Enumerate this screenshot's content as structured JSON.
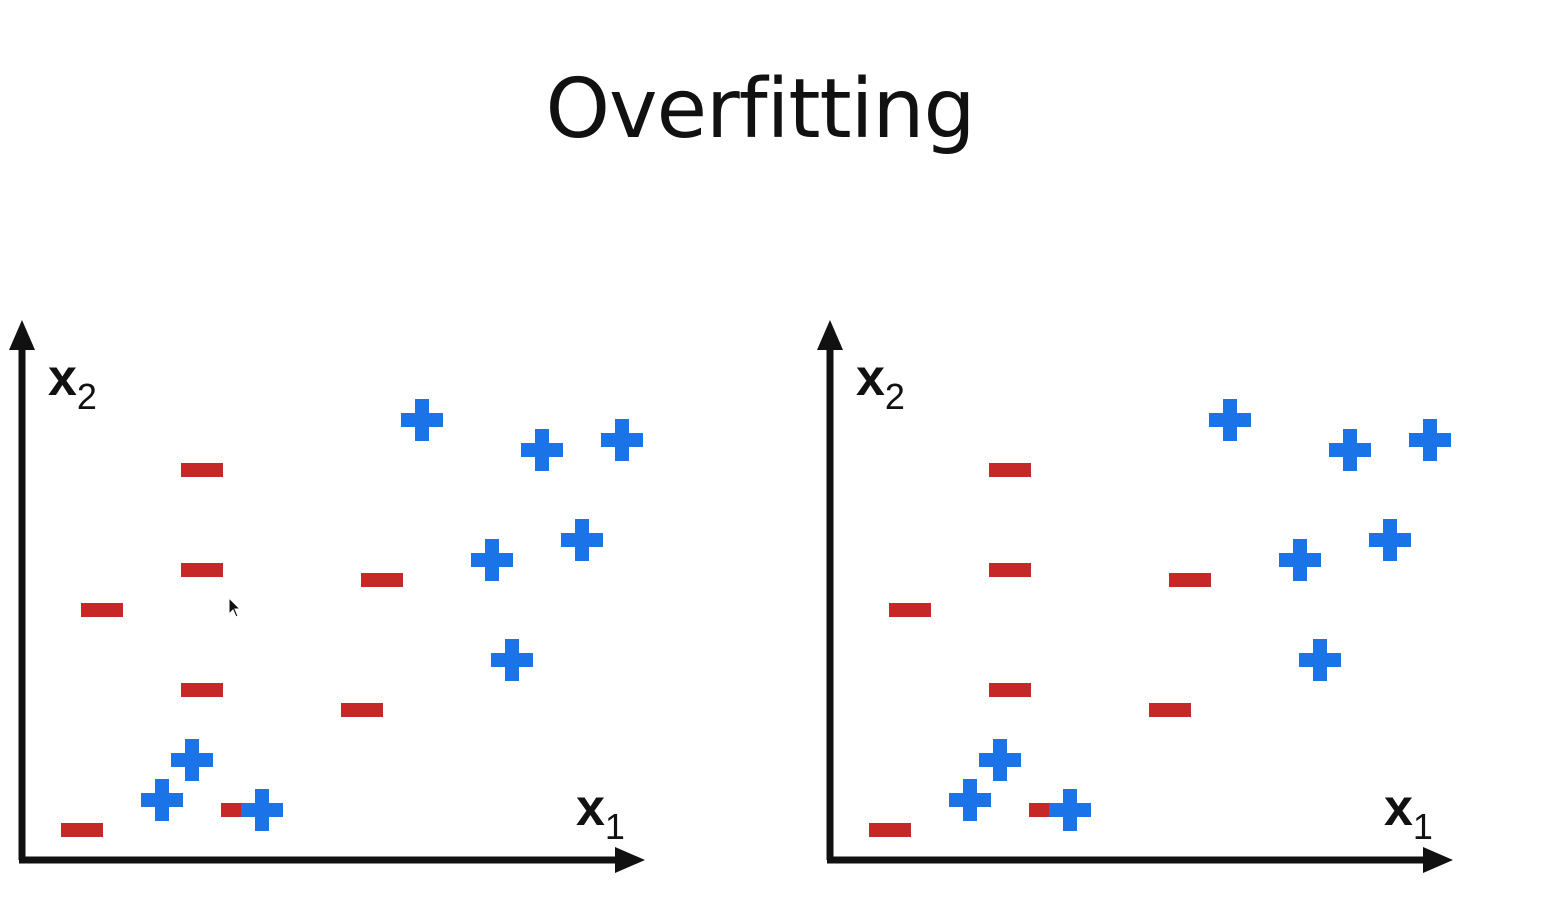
{
  "title": "Overfitting",
  "colors": {
    "positive": "#1a74e8",
    "negative": "#c62828",
    "axis": "#111111"
  },
  "panels": [
    {
      "id": "left",
      "x_label": "x",
      "x_sub": "1",
      "y_label": "x",
      "y_sub": "2"
    },
    {
      "id": "right",
      "x_label": "x",
      "x_sub": "1",
      "y_label": "x",
      "y_sub": "2"
    }
  ],
  "markers": {
    "positive": [
      [
        1.3,
        1.0
      ],
      [
        1.0,
        0.6
      ],
      [
        2.0,
        0.5
      ],
      [
        4.5,
        2.0
      ],
      [
        4.3,
        3.0
      ],
      [
        5.2,
        3.2
      ],
      [
        5.6,
        4.2
      ],
      [
        3.6,
        4.4
      ],
      [
        4.8,
        4.1
      ]
    ],
    "negative": [
      [
        1.4,
        3.9
      ],
      [
        1.4,
        2.9
      ],
      [
        0.4,
        2.5
      ],
      [
        3.2,
        2.8
      ],
      [
        1.4,
        1.7
      ],
      [
        3.0,
        1.5
      ],
      [
        1.8,
        0.5
      ],
      [
        0.2,
        0.3
      ]
    ]
  }
}
